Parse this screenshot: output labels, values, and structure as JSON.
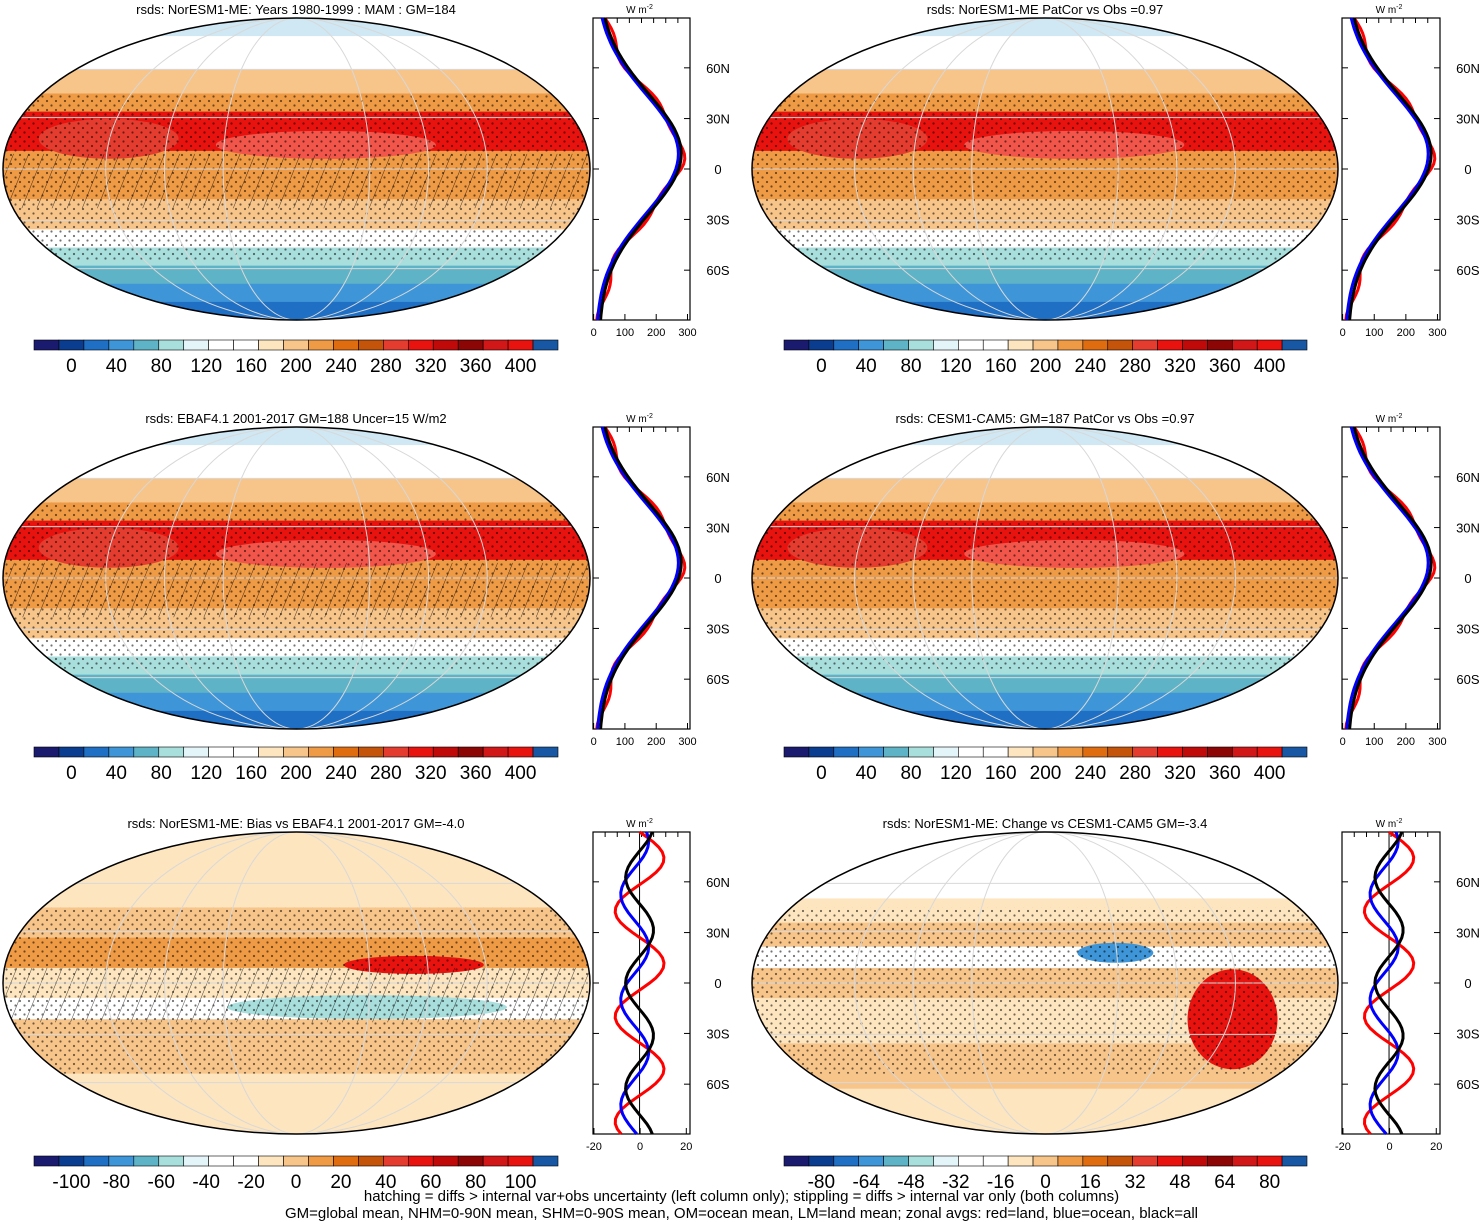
{
  "panels": [
    {
      "id": "p1",
      "title": "rsds: NorESM1-ME: Years 1980-1999 : MAM : GM=184",
      "type": "abs"
    },
    {
      "id": "p2",
      "title": "rsds: NorESM1-ME PatCor vs Obs =0.97",
      "type": "abs"
    },
    {
      "id": "p3",
      "title": "rsds: EBAF4.1 2001-2017 GM=188 Uncer=15 W/m2",
      "type": "abs"
    },
    {
      "id": "p4",
      "title": "rsds: CESM1-CAM5: GM=187 PatCor vs Obs =0.97",
      "type": "abs"
    },
    {
      "id": "p5",
      "title": "rsds: NorESM1-ME: Bias vs EBAF4.1 2001-2017 GM=-4.0",
      "type": "bias"
    },
    {
      "id": "p6",
      "title": "rsds: NorESM1-ME: Change vs CESM1-CAM5 GM=-3.4",
      "type": "change"
    }
  ],
  "colorbars": {
    "abs": [
      "0",
      "40",
      "80",
      "120",
      "160",
      "200",
      "240",
      "280",
      "320",
      "360",
      "400"
    ],
    "bias": [
      "-100",
      "-80",
      "-60",
      "-40",
      "-20",
      "0",
      "20",
      "40",
      "60",
      "80",
      "100"
    ],
    "change": [
      "-80",
      "-64",
      "-48",
      "-32",
      "-16",
      "0",
      "16",
      "32",
      "48",
      "64",
      "80"
    ]
  },
  "colorbar_colors": [
    "#1a1a6e",
    "#0a3d8f",
    "#1f6fc4",
    "#3e96d8",
    "#5fb3c6",
    "#a8dedc",
    "#e4f5fa",
    "#ffffff",
    "#ffffff",
    "#fde5bf",
    "#f7c48a",
    "#ef9a45",
    "#e06c10",
    "#c4540a",
    "#e43d2f",
    "#e8120f",
    "#c00a0a",
    "#8c0606",
    "#d11717",
    "#e8120f",
    "#1757a3"
  ],
  "zonal": {
    "wunits": "W m",
    "wsup": "-2",
    "lat_labels": [
      "60N",
      "30N",
      "0",
      "30S",
      "60S"
    ],
    "abs_xticks": [
      "0",
      "100",
      "200",
      "300"
    ],
    "bias_xticks": [
      "-20",
      "0",
      "20"
    ],
    "change_xticks": [
      "-20",
      "0",
      "20"
    ],
    "line_colors": {
      "land": "#ff0000",
      "ocean": "#0000ff",
      "all": "#000000"
    }
  },
  "footer": {
    "line1": "hatching = diffs > internal var+obs uncertainty (left column only); stippling = diffs > internal var only (both columns)",
    "line2": "GM=global mean, NHM=0-90N mean, SHM=0-90S mean, OM=ocean mean, LM=land mean; zonal avgs: red=land, blue=ocean, black=all"
  }
}
